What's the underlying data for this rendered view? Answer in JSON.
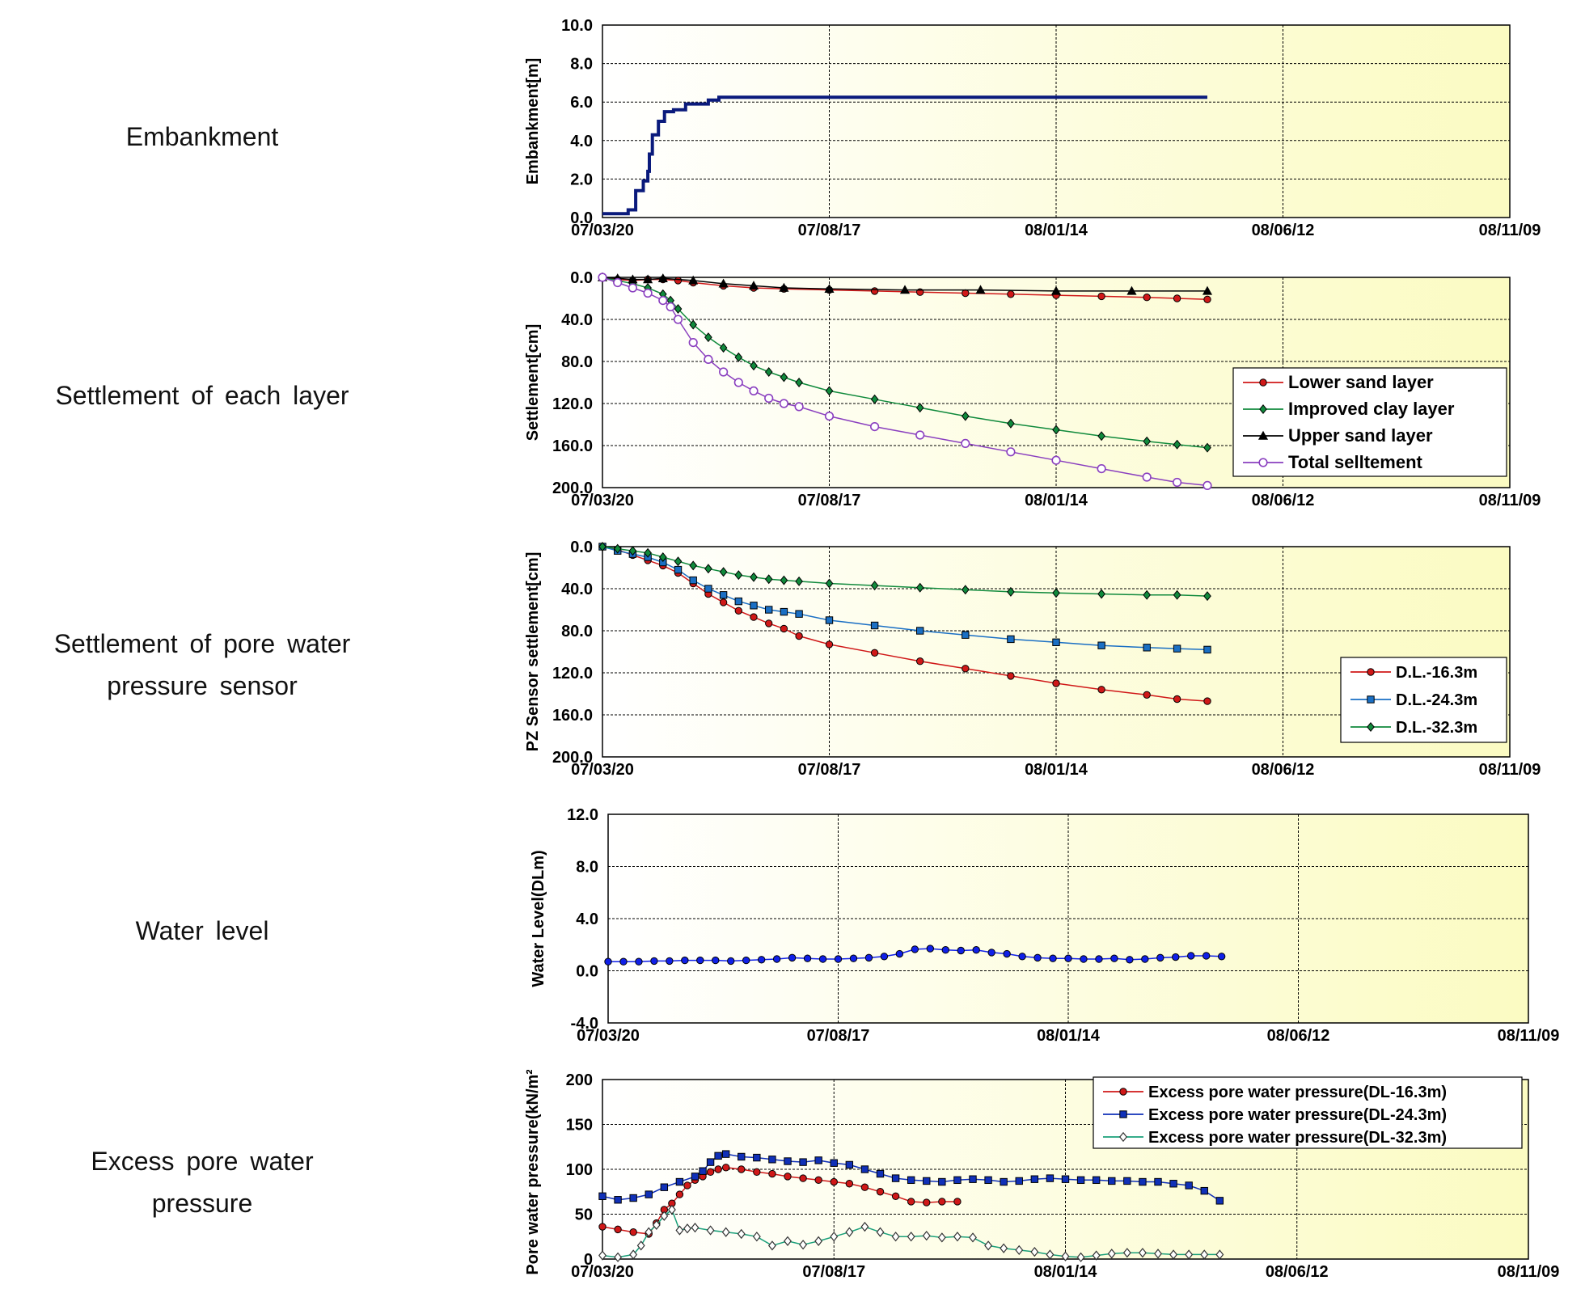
{
  "row_labels": [
    {
      "lines": [
        "Embankment"
      ]
    },
    {
      "lines": [
        "Settlement of each layer"
      ]
    },
    {
      "lines": [
        "Settlement of pore water",
        "pressure sensor"
      ]
    },
    {
      "lines": [
        "Water level"
      ]
    },
    {
      "lines": [
        "Excess pore water",
        "pressure"
      ]
    }
  ],
  "x_ticks": [
    "07/03/20",
    "07/08/17",
    "08/01/14",
    "08/06/12",
    "08/11/09"
  ],
  "colors": {
    "plot_bg_left": "#ffffff",
    "plot_bg_right": "#fbfbc2"
  },
  "chart_data": [
    {
      "type": "line",
      "ylabel": "Embankment[m]",
      "yticks": [
        "10.0",
        "8.0",
        "6.0",
        "4.0",
        "2.0",
        "0.0"
      ],
      "ylim": [
        0,
        10
      ],
      "inverted": false,
      "xlim": [
        0,
        600
      ],
      "series": [
        {
          "name": "",
          "color": "#0a1a7c",
          "marker": "none",
          "step": true,
          "x": [
            0,
            17,
            17,
            22,
            22,
            27,
            27,
            30,
            30,
            31,
            31,
            33,
            33,
            37,
            37,
            41,
            41,
            47,
            47,
            55,
            55,
            70,
            70,
            77,
            77,
            80,
            80,
            120,
            200,
            300,
            400
          ],
          "y": [
            0.2,
            0.2,
            0.4,
            0.4,
            1.4,
            1.4,
            1.9,
            1.9,
            2.4,
            2.4,
            3.3,
            3.3,
            4.3,
            4.3,
            5.0,
            5.0,
            5.5,
            5.5,
            5.6,
            5.6,
            5.9,
            5.9,
            6.1,
            6.1,
            6.25,
            6.25,
            6.25,
            6.25,
            6.25,
            6.25,
            6.25
          ]
        }
      ]
    },
    {
      "type": "line",
      "ylabel": "Settlement[cm]",
      "yticks": [
        "0.0",
        "40.0",
        "80.0",
        "120.0",
        "160.0",
        "200.0"
      ],
      "ylim": [
        0,
        200
      ],
      "inverted": true,
      "xlim": [
        0,
        600
      ],
      "legend": {
        "position": "bottom-right",
        "entries": [
          "Lower sand layer",
          "Improved clay layer",
          "Upper sand layer",
          "Total selltement"
        ]
      },
      "series": [
        {
          "name": "Lower sand layer",
          "color": "#d01818",
          "marker": "circle-filled",
          "x": [
            0,
            10,
            20,
            30,
            40,
            50,
            60,
            80,
            100,
            120,
            150,
            180,
            210,
            240,
            270,
            300,
            330,
            360,
            380,
            400
          ],
          "y": [
            0,
            2,
            3,
            2,
            2,
            3,
            5,
            8,
            10,
            11,
            12,
            13,
            14,
            15,
            16,
            17,
            18,
            19,
            20,
            21
          ]
        },
        {
          "name": "Improved clay layer",
          "color": "#108a3c",
          "marker": "diamond-filled",
          "x": [
            0,
            10,
            20,
            30,
            40,
            45,
            50,
            60,
            70,
            80,
            90,
            100,
            110,
            120,
            130,
            150,
            180,
            210,
            240,
            270,
            300,
            330,
            360,
            380,
            400
          ],
          "y": [
            0,
            3,
            6,
            10,
            16,
            22,
            30,
            45,
            57,
            67,
            76,
            84,
            90,
            95,
            100,
            108,
            116,
            124,
            132,
            139,
            145,
            151,
            156,
            159,
            162
          ]
        },
        {
          "name": "Upper sand layer",
          "color": "#000000",
          "marker": "triangle-filled",
          "x": [
            0,
            10,
            20,
            30,
            40,
            60,
            80,
            100,
            120,
            150,
            200,
            250,
            300,
            350,
            400
          ],
          "y": [
            0,
            1,
            2,
            2,
            1,
            3,
            6,
            8,
            10,
            11,
            12,
            12,
            13,
            13,
            13
          ]
        },
        {
          "name": "Total selltement",
          "color": "#8a3fbf",
          "marker": "circle-open",
          "x": [
            0,
            10,
            20,
            30,
            40,
            45,
            50,
            60,
            70,
            80,
            90,
            100,
            110,
            120,
            130,
            150,
            180,
            210,
            240,
            270,
            300,
            330,
            360,
            380,
            400
          ],
          "y": [
            0,
            5,
            10,
            15,
            22,
            28,
            40,
            62,
            78,
            90,
            100,
            108,
            115,
            120,
            123,
            132,
            142,
            150,
            158,
            166,
            174,
            182,
            190,
            195,
            198
          ]
        }
      ]
    },
    {
      "type": "line",
      "ylabel": "PZ Sensor settlement[cm]",
      "yticks": [
        "0.0",
        "40.0",
        "80.0",
        "120.0",
        "160.0",
        "200.0"
      ],
      "ylim": [
        0,
        200
      ],
      "inverted": true,
      "xlim": [
        0,
        600
      ],
      "legend": {
        "position": "bottom-right",
        "entries": [
          "D.L.-16.3m",
          "D.L.-24.3m",
          "D.L.-32.3m"
        ]
      },
      "series": [
        {
          "name": "D.L.-16.3m",
          "color": "#d01818",
          "marker": "circle-filled",
          "x": [
            0,
            10,
            20,
            30,
            40,
            50,
            60,
            70,
            80,
            90,
            100,
            110,
            120,
            130,
            150,
            180,
            210,
            240,
            270,
            300,
            330,
            360,
            380,
            400
          ],
          "y": [
            0,
            3,
            8,
            13,
            18,
            25,
            35,
            45,
            53,
            61,
            67,
            73,
            78,
            85,
            93,
            101,
            109,
            116,
            123,
            130,
            136,
            141,
            145,
            147
          ]
        },
        {
          "name": "D.L.-24.3m",
          "color": "#1a6fc4",
          "marker": "square-filled",
          "x": [
            0,
            10,
            20,
            30,
            40,
            50,
            60,
            70,
            80,
            90,
            100,
            110,
            120,
            130,
            150,
            180,
            210,
            240,
            270,
            300,
            330,
            360,
            380,
            400
          ],
          "y": [
            0,
            4,
            7,
            10,
            15,
            22,
            32,
            40,
            46,
            52,
            56,
            60,
            62,
            64,
            70,
            75,
            80,
            84,
            88,
            91,
            94,
            96,
            97,
            98
          ]
        },
        {
          "name": "D.L.-32.3m",
          "color": "#108a3c",
          "marker": "diamond-filled",
          "x": [
            0,
            10,
            20,
            30,
            40,
            50,
            60,
            70,
            80,
            90,
            100,
            110,
            120,
            130,
            150,
            180,
            210,
            240,
            270,
            300,
            330,
            360,
            380,
            400
          ],
          "y": [
            0,
            2,
            4,
            6,
            10,
            14,
            18,
            21,
            24,
            27,
            29,
            31,
            32,
            33,
            35,
            37,
            39,
            41,
            43,
            44,
            45,
            46,
            46,
            47
          ]
        }
      ]
    },
    {
      "type": "line",
      "ylabel": "Water Level(DLm)",
      "yticks": [
        "12.0",
        "8.0",
        "4.0",
        "0.0",
        "-4.0"
      ],
      "ylim": [
        -4,
        12
      ],
      "inverted": false,
      "xlim": [
        0,
        600
      ],
      "series": [
        {
          "name": "",
          "color": "#1020e8",
          "marker": "circle-filled",
          "x": [
            0,
            10,
            20,
            30,
            40,
            50,
            60,
            70,
            80,
            90,
            100,
            110,
            120,
            130,
            140,
            150,
            160,
            170,
            180,
            190,
            200,
            210,
            220,
            230,
            240,
            250,
            260,
            270,
            280,
            290,
            300,
            310,
            320,
            330,
            340,
            350,
            360,
            370,
            380,
            390,
            400
          ],
          "y": [
            0.7,
            0.7,
            0.7,
            0.75,
            0.75,
            0.8,
            0.8,
            0.8,
            0.75,
            0.8,
            0.85,
            0.9,
            1.0,
            0.95,
            0.9,
            0.9,
            0.95,
            1.0,
            1.1,
            1.3,
            1.65,
            1.7,
            1.6,
            1.55,
            1.6,
            1.4,
            1.3,
            1.1,
            1.0,
            0.95,
            0.95,
            0.9,
            0.9,
            0.95,
            0.85,
            0.9,
            1.0,
            1.05,
            1.15,
            1.15,
            1.1
          ]
        }
      ]
    },
    {
      "type": "line",
      "ylabel": "Pore water pressure(kN/m²)",
      "yticks": [
        "200",
        "150",
        "100",
        "50",
        "0"
      ],
      "ylim": [
        0,
        200
      ],
      "inverted": false,
      "xlim": [
        0,
        600
      ],
      "legend": {
        "position": "top-right",
        "entries": [
          "Excess pore water pressure(DL-16.3m)",
          "Excess pore water pressure(DL-24.3m)",
          "Excess pore water pressure(DL-32.3m)"
        ]
      },
      "series": [
        {
          "name": "Excess pore water pressure(DL-16.3m)",
          "color": "#d01818",
          "marker": "circle-filled",
          "x": [
            0,
            10,
            20,
            30,
            35,
            40,
            45,
            50,
            55,
            60,
            65,
            70,
            75,
            80,
            90,
            100,
            110,
            120,
            130,
            140,
            150,
            160,
            170,
            180,
            190,
            200,
            210,
            220,
            230
          ],
          "y": [
            36,
            33,
            30,
            28,
            40,
            55,
            62,
            72,
            82,
            88,
            92,
            97,
            100,
            102,
            100,
            97,
            95,
            92,
            90,
            88,
            86,
            84,
            80,
            75,
            70,
            64,
            63,
            64,
            64
          ]
        },
        {
          "name": "Excess pore water pressure(DL-24.3m)",
          "color": "#1030b8",
          "marker": "square-filled",
          "x": [
            0,
            10,
            20,
            30,
            40,
            50,
            60,
            65,
            70,
            75,
            80,
            90,
            100,
            110,
            120,
            130,
            140,
            150,
            160,
            170,
            180,
            190,
            200,
            210,
            220,
            230,
            240,
            250,
            260,
            270,
            280,
            290,
            300,
            310,
            320,
            330,
            340,
            350,
            360,
            370,
            380,
            390,
            400
          ],
          "y": [
            70,
            66,
            68,
            72,
            80,
            86,
            92,
            98,
            108,
            115,
            117,
            114,
            113,
            111,
            109,
            108,
            110,
            107,
            105,
            100,
            95,
            90,
            88,
            87,
            86,
            88,
            89,
            88,
            86,
            87,
            89,
            90,
            89,
            88,
            88,
            87,
            87,
            86,
            86,
            84,
            82,
            76,
            65
          ]
        },
        {
          "name": "Excess pore water pressure(DL-32.3m)",
          "color": "#1aa07a",
          "marker": "diamond-open",
          "x": [
            0,
            10,
            20,
            25,
            30,
            35,
            40,
            45,
            50,
            55,
            60,
            70,
            80,
            90,
            100,
            110,
            120,
            130,
            140,
            150,
            160,
            170,
            180,
            190,
            200,
            210,
            220,
            230,
            240,
            250,
            260,
            270,
            280,
            290,
            300,
            310,
            320,
            330,
            340,
            350,
            360,
            370,
            380,
            390,
            400
          ],
          "y": [
            4,
            2,
            5,
            15,
            30,
            38,
            48,
            55,
            32,
            34,
            35,
            32,
            30,
            28,
            25,
            15,
            20,
            16,
            20,
            25,
            30,
            36,
            30,
            25,
            25,
            26,
            24,
            25,
            24,
            15,
            12,
            10,
            8,
            5,
            3,
            2,
            4,
            6,
            7,
            7,
            6,
            5,
            5,
            5,
            5
          ]
        }
      ]
    }
  ]
}
